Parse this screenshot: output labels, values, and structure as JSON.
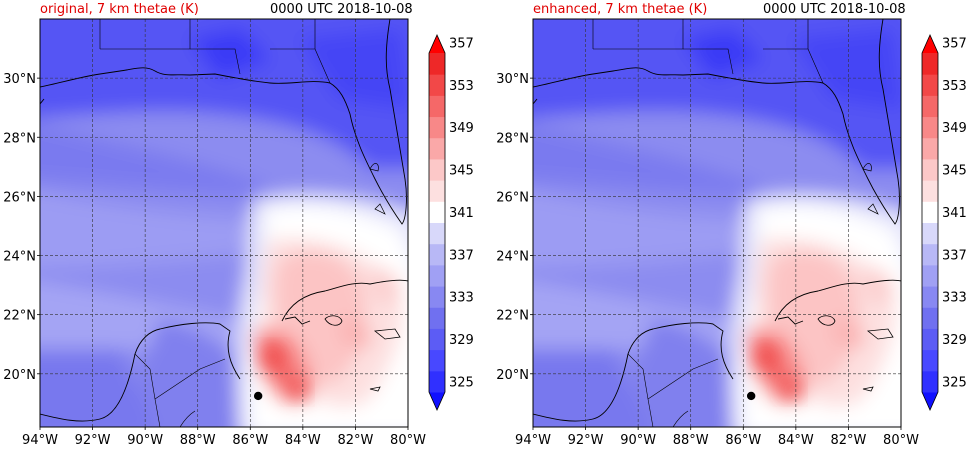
{
  "panels": [
    {
      "title_left": "original, 7 km thetae (K)",
      "title_right": "0000 UTC 2018-10-08"
    },
    {
      "title_left": "enhanced, 7 km thetae (K)",
      "title_right": "0000 UTC 2018-10-08"
    }
  ],
  "map": {
    "lon_ticks": [
      "94°W",
      "92°W",
      "90°W",
      "88°W",
      "86°W",
      "84°W",
      "82°W",
      "80°W"
    ],
    "lat_ticks": [
      "30°N",
      "28°N",
      "26°N",
      "24°N",
      "22°N",
      "20°N"
    ],
    "lon_range": [
      -94,
      -80
    ],
    "lat_range": [
      18.2,
      32.0
    ],
    "gridlines": true,
    "storm_marker": {
      "lon": -85.7,
      "lat": 19.25
    }
  },
  "colorbar": {
    "labels": [
      "325",
      "329",
      "333",
      "337",
      "341",
      "345",
      "349",
      "353",
      "357"
    ],
    "levels": [
      325,
      327,
      329,
      331,
      333,
      335,
      337,
      339,
      341,
      343,
      345,
      347,
      349,
      351,
      353,
      355,
      357,
      359
    ],
    "colors": [
      "#1010ff",
      "#3030ff",
      "#4848ff",
      "#5c5cf5",
      "#7070f0",
      "#8888f2",
      "#a0a0f4",
      "#b8b8f6",
      "#d8d8fa",
      "#ffffff",
      "#fde0e0",
      "#fcc8c8",
      "#faa8a8",
      "#f88888",
      "#f56868",
      "#f24848",
      "#ee2828",
      "#ff0000"
    ],
    "extend": "both"
  }
}
